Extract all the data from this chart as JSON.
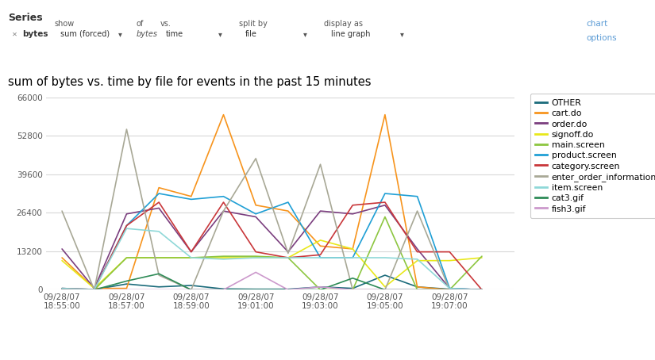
{
  "title": "sum of bytes vs. time by file for events in the past 15 minutes",
  "x_labels": [
    "09/28/07\n18:55:00",
    "09/28/07\n18:57:00",
    "09/28/07\n18:59:00",
    "09/28/07\n19:01:00",
    "09/28/07\n19:03:00",
    "09/28/07\n19:05:00",
    "09/28/07\n19:07:00"
  ],
  "ylim": [
    0,
    66000
  ],
  "yticks": [
    0,
    13200,
    26400,
    39600,
    52800,
    66000
  ],
  "series": {
    "OTHER": {
      "color": "#1B6B7B",
      "data": [
        200,
        100,
        2000,
        1000,
        1500,
        300,
        200,
        200,
        1000,
        500,
        5000,
        1000,
        200,
        100
      ]
    },
    "cart.do": {
      "color": "#F7941D",
      "data": [
        11000,
        500,
        500,
        35000,
        32000,
        60000,
        29000,
        27000,
        15000,
        14000,
        60000,
        1000,
        0,
        0
      ]
    },
    "order.do": {
      "color": "#7B3F7F",
      "data": [
        14000,
        500,
        26000,
        28000,
        13000,
        27000,
        25000,
        13000,
        27000,
        26000,
        29000,
        14000,
        500,
        0
      ]
    },
    "signoff.do": {
      "color": "#E8E81A",
      "data": [
        10000,
        500,
        11000,
        11000,
        11000,
        11000,
        11000,
        11000,
        17000,
        14000,
        1000,
        10000,
        10000,
        11000
      ]
    },
    "main.screen": {
      "color": "#8DC641",
      "data": [
        0,
        0,
        11000,
        11000,
        11000,
        11500,
        11500,
        11000,
        0,
        0,
        25000,
        0,
        0,
        11500
      ]
    },
    "product.screen": {
      "color": "#1F9FD5",
      "data": [
        500,
        100,
        22000,
        33000,
        31000,
        32000,
        26000,
        30000,
        11000,
        11000,
        33000,
        32000,
        500,
        0
      ]
    },
    "category.screen": {
      "color": "#C9373A",
      "data": [
        500,
        100,
        22000,
        30000,
        13000,
        30000,
        13000,
        11000,
        12000,
        29000,
        30000,
        13000,
        13000,
        0
      ]
    },
    "enter_order_information.screen": {
      "color": "#A8A896",
      "data": [
        27000,
        0,
        55000,
        5000,
        0,
        27000,
        45000,
        12500,
        43000,
        0,
        0,
        27000,
        0,
        0
      ]
    },
    "item.screen": {
      "color": "#8FD8D8",
      "data": [
        500,
        100,
        21000,
        20000,
        11000,
        10500,
        11000,
        11000,
        11000,
        11000,
        11000,
        10500,
        500,
        0
      ]
    },
    "cat3.gif": {
      "color": "#2E8B57",
      "data": [
        0,
        0,
        3000,
        5500,
        0,
        0,
        0,
        0,
        0,
        4000,
        0,
        0,
        0,
        0
      ]
    },
    "fish3.gif": {
      "color": "#CC99CC",
      "data": [
        0,
        0,
        0,
        0,
        0,
        0,
        6000,
        0,
        1000,
        0,
        0,
        0,
        0,
        0
      ]
    }
  },
  "bg_color": "#ffffff",
  "grid_color": "#d8d8d8",
  "header_line_color": "#cccccc",
  "axis_color": "#cccccc",
  "title_color": "#000000",
  "tick_color": "#555555",
  "label_color": "#555555",
  "header_bg": "#f0f0f0",
  "chart_options_color": "#5b9bd5",
  "bytes_bg": "#ffff44",
  "bytes_border": "#aaaaaa"
}
